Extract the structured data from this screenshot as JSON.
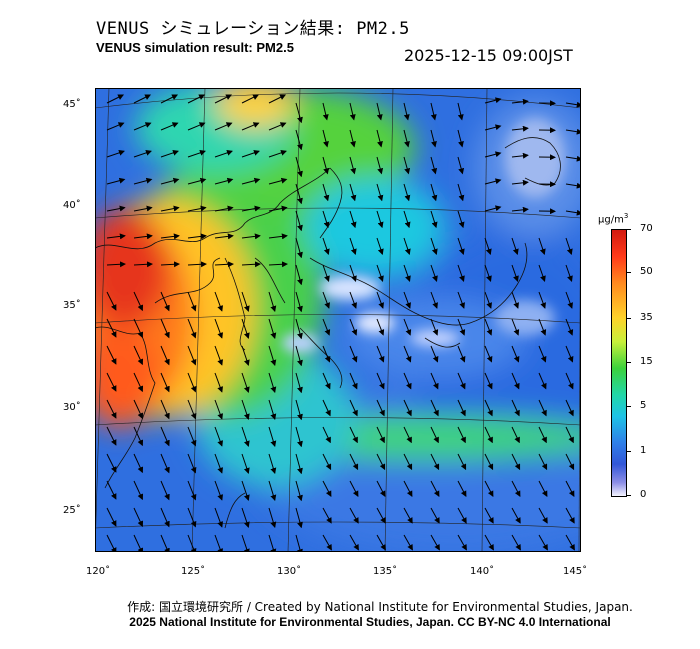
{
  "header": {
    "title_jp": "VENUS シミュレーション結果: PM2.5",
    "title_en": "VENUS simulation result: PM2.5",
    "timestamp": "2025-12-15 09:00JST"
  },
  "axes": {
    "lon_labels": [
      "120˚",
      "125˚",
      "130˚",
      "135˚",
      "140˚",
      "145˚"
    ],
    "lat_labels": [
      "45˚",
      "40˚",
      "35˚",
      "30˚",
      "25˚"
    ]
  },
  "colorbar": {
    "unit": "μg/m",
    "unit_sup": "3",
    "ticks": [
      "70",
      "50",
      "35",
      "15",
      "5",
      "1",
      "0"
    ],
    "colors": [
      "#d11a10",
      "#ff8a1f",
      "#ffd22a",
      "#3cd23c",
      "#1ec3e6",
      "#3257d8",
      "#f4f4ff"
    ]
  },
  "footer": {
    "line1": "作成: 国立環境研究所 / Created by National Institute for Environmental Studies, Japan.",
    "line2": "2025 National Institute for Environmental Studies, Japan. CC BY-NC 4.0 International"
  }
}
